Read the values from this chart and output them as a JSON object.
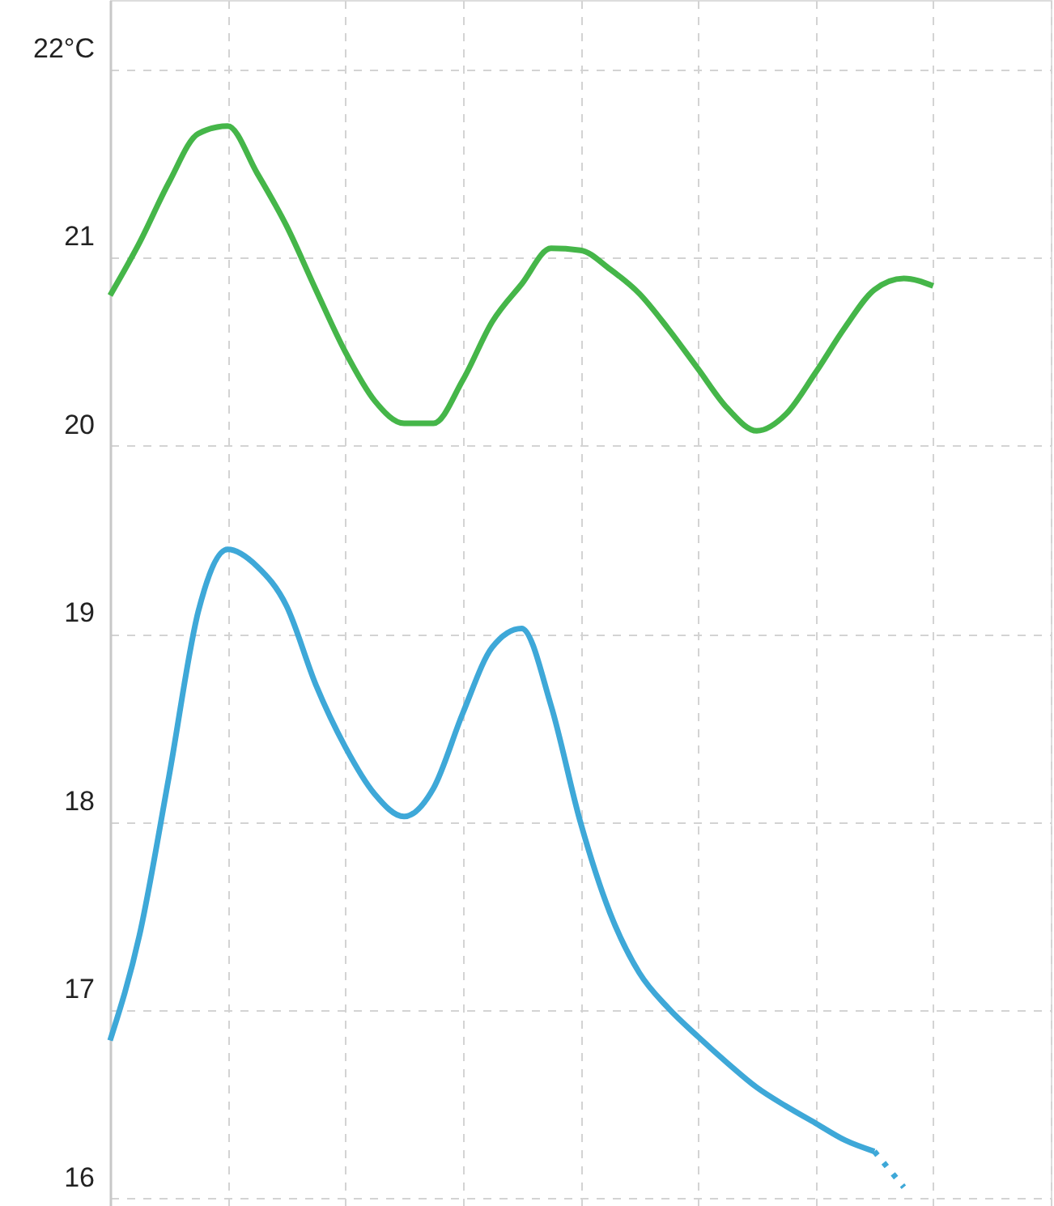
{
  "chart_data": {
    "type": "line",
    "tick_labels": "y",
    "grid": true,
    "marker": "none",
    "categories": [
      null,
      null,
      null,
      null,
      null,
      null,
      null,
      null,
      null,
      null,
      null,
      null,
      null,
      null,
      null,
      null,
      null,
      null,
      null,
      null,
      null,
      null,
      null,
      null,
      null,
      null,
      null,
      null,
      null,
      null,
      null,
      null,
      null
    ],
    "ylim": [
      15.96,
      22.37
    ],
    "yticks": [
      16,
      17,
      18,
      19,
      20,
      21,
      {
        "value": 22,
        "label": "22°C"
      }
    ],
    "series": [
      {
        "color": "#45b649",
        "line_style": "solid",
        "values": [
          20.8,
          21.08,
          21.4,
          21.66,
          21.7,
          21.45,
          21.17,
          20.83,
          20.5,
          20.24,
          20.12,
          20.12,
          20.35,
          20.66,
          20.86,
          21.05,
          21.04,
          20.94,
          20.81,
          20.62,
          20.41,
          20.2,
          20.08,
          20.17,
          20.39,
          20.63,
          20.83,
          20.89,
          20.85,
          null,
          null,
          null,
          null
        ]
      },
      {
        "color": "#3ea8d8",
        "line_style": "solid",
        "values": [
          16.84,
          17.4,
          18.24,
          19.12,
          19.45,
          19.36,
          19.15,
          18.73,
          18.4,
          18.15,
          18.03,
          18.18,
          18.58,
          18.93,
          19.03,
          18.62,
          18.0,
          17.52,
          17.2,
          17.01,
          16.86,
          16.72,
          16.59,
          16.49,
          16.4,
          16.31,
          16.25,
          null,
          null,
          null,
          null,
          null,
          null
        ]
      },
      {
        "color": "#3ea8d8",
        "line_style": "dotted",
        "values": [
          null,
          null,
          null,
          null,
          null,
          null,
          null,
          null,
          null,
          null,
          null,
          null,
          null,
          null,
          null,
          null,
          null,
          null,
          null,
          null,
          null,
          null,
          null,
          null,
          null,
          null,
          16.25,
          16.06,
          null,
          null,
          null,
          null,
          null
        ]
      }
    ]
  }
}
